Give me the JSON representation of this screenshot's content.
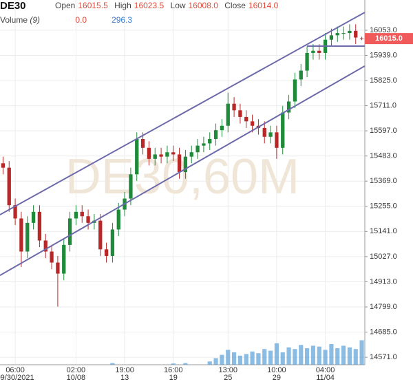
{
  "header": {
    "symbol": "DE30",
    "open_label": "Open",
    "open": "16015.5",
    "high_label": "High",
    "high": "16023.5",
    "low_label": "Low",
    "low": "16008.0",
    "close_label": "Close",
    "close": "16014.0",
    "volume_label": "Volume",
    "volume_period": "(9)",
    "volume_min": "0.0",
    "volume_last": "296.3"
  },
  "chart_data": {
    "type": "candlestick",
    "watermark": "DE30,60M",
    "up_color": "#1f8a3a",
    "down_color": "#b82828",
    "volume_color": "#5aa0d8",
    "line_color": "#6d6aab",
    "ylim": [
      14537,
      16190
    ],
    "xlim": [
      -0.5,
      59.5
    ],
    "vlim": [
      0,
      500
    ],
    "yticks": [
      {
        "value": 16053,
        "label": "16053.0"
      },
      {
        "value": 15939,
        "label": "15939.0"
      },
      {
        "value": 15825,
        "label": "15825.0"
      },
      {
        "value": 15711,
        "label": "15711.0"
      },
      {
        "value": 15597,
        "label": "15597.0"
      },
      {
        "value": 15483,
        "label": "15483.0"
      },
      {
        "value": 15369,
        "label": "15369.0"
      },
      {
        "value": 15255,
        "label": "15255.0"
      },
      {
        "value": 15141,
        "label": "15141.0"
      },
      {
        "value": 15027,
        "label": "15027.0"
      },
      {
        "value": 14913,
        "label": "14913.0"
      },
      {
        "value": 14799,
        "label": "14799.0"
      },
      {
        "value": 14685,
        "label": "14685.0"
      },
      {
        "value": 14571,
        "label": "14571.0"
      }
    ],
    "xticks": [
      {
        "value": 2,
        "label": "06:00"
      },
      {
        "value": 12,
        "label": "02:00"
      },
      {
        "value": 20,
        "label": "19:00"
      },
      {
        "value": 28,
        "label": "16:00"
      },
      {
        "value": 37,
        "label": "13:00"
      },
      {
        "value": 45,
        "label": "10:00"
      },
      {
        "value": 53,
        "label": "04:00"
      }
    ],
    "xtick_dates": [
      "09/30/2021",
      "10/08",
      "13",
      "19",
      "25",
      "29",
      "11/04"
    ],
    "last_price": 16015,
    "last_price_label": "16015.0",
    "open": [
      15450,
      15430,
      15260,
      15200,
      15050,
      15180,
      15230,
      15100,
      15050,
      15000,
      14950,
      15080,
      15200,
      15230,
      15210,
      15180,
      15190,
      15060,
      15030,
      15150,
      15240,
      15290,
      15400,
      15560,
      15520,
      15470,
      15490,
      15480,
      15500,
      15490,
      15410,
      15480,
      15500,
      15530,
      15540,
      15560,
      15600,
      15620,
      15720,
      15690,
      15660,
      15640,
      15620,
      15610,
      15570,
      15590,
      15520,
      15680,
      15730,
      15830,
      15870,
      15950,
      15960,
      15950,
      16010,
      16030,
      16040,
      16040,
      16050,
      16015.5
    ],
    "high": [
      15480,
      15460,
      15290,
      15230,
      15210,
      15260,
      15260,
      15130,
      15080,
      15030,
      15110,
      15230,
      15260,
      15260,
      15240,
      15220,
      15220,
      15090,
      15180,
      15270,
      15320,
      15430,
      15590,
      15590,
      15550,
      15520,
      15520,
      15530,
      15530,
      15520,
      15510,
      15530,
      15560,
      15570,
      15590,
      15630,
      15650,
      15770,
      15750,
      15720,
      15690,
      15670,
      15650,
      15640,
      15620,
      15620,
      15710,
      15760,
      15860,
      15900,
      15980,
      15990,
      15990,
      16040,
      16060,
      16070,
      16070,
      16080,
      16080,
      16023.5
    ],
    "low": [
      15400,
      15230,
      15170,
      14980,
      15020,
      15150,
      15070,
      15020,
      14970,
      14800,
      14920,
      15050,
      15170,
      15180,
      15150,
      15150,
      15030,
      15000,
      15000,
      15120,
      15210,
      15260,
      15370,
      15490,
      15440,
      15440,
      15450,
      15450,
      15460,
      15380,
      15380,
      15450,
      15470,
      15500,
      15510,
      15530,
      15570,
      15590,
      15660,
      15630,
      15610,
      15590,
      15580,
      15540,
      15540,
      15470,
      15490,
      15650,
      15700,
      15800,
      15840,
      15920,
      15920,
      15920,
      15980,
      16000,
      16010,
      16010,
      15990,
      16008
    ],
    "close": [
      15430,
      15260,
      15200,
      15050,
      15180,
      15230,
      15100,
      15050,
      15000,
      14950,
      15080,
      15200,
      15230,
      15210,
      15180,
      15190,
      15060,
      15030,
      15150,
      15240,
      15290,
      15400,
      15560,
      15520,
      15470,
      15490,
      15480,
      15500,
      15490,
      15410,
      15480,
      15500,
      15530,
      15540,
      15560,
      15600,
      15620,
      15720,
      15690,
      15660,
      15640,
      15620,
      15610,
      15570,
      15590,
      15520,
      15680,
      15730,
      15830,
      15870,
      15950,
      15960,
      15950,
      16010,
      16030,
      16040,
      16040,
      16050,
      16020,
      16014
    ],
    "volume": [
      0,
      0,
      0,
      0,
      0,
      0,
      0,
      0,
      0,
      0,
      0,
      0,
      0,
      0,
      0,
      0,
      0,
      0,
      20,
      0,
      0,
      0,
      0,
      0,
      0,
      0,
      0,
      0,
      15,
      0,
      20,
      0,
      0,
      0,
      40,
      80,
      120,
      180,
      150,
      110,
      130,
      160,
      140,
      190,
      170,
      260,
      150,
      210,
      190,
      240,
      200,
      230,
      220,
      180,
      250,
      200,
      230,
      210,
      190,
      296.3
    ],
    "trend_lines": [
      {
        "x": [
          -0.5,
          59.5
        ],
        "y": [
          15217,
          16134
        ]
      },
      {
        "x": [
          -0.5,
          59.5
        ],
        "y": [
          14942,
          15891
        ]
      },
      {
        "x": [
          50,
          59.5
        ],
        "y": [
          15981,
          15981
        ]
      }
    ]
  }
}
